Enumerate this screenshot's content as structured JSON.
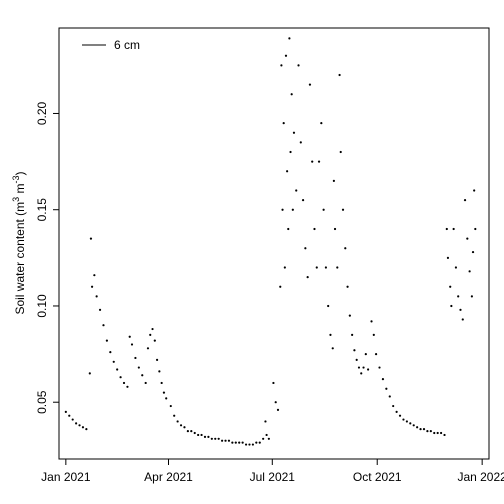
{
  "chart_data": {
    "type": "scatter",
    "title": "",
    "xlabel": "",
    "ylabel": "Soil water content (m³ m⁻³)",
    "ylabel_parts": {
      "main": "Soil water content (m",
      "sup1": "3",
      "mid": " m",
      "sup2": "-3",
      "end": ")"
    },
    "xlim": [
      "2020-12-26",
      "2022-01-07"
    ],
    "ylim": [
      0.0205,
      0.2444
    ],
    "x_ticks": [
      {
        "date": "2021-01-01",
        "label": "Jan 2021"
      },
      {
        "date": "2021-04-01",
        "label": "Apr 2021"
      },
      {
        "date": "2021-07-01",
        "label": "Jul 2021"
      },
      {
        "date": "2021-10-01",
        "label": "Oct 2021"
      },
      {
        "date": "2022-01-01",
        "label": "Jan 2022"
      }
    ],
    "y_ticks": [
      {
        "value": 0.05,
        "label": "0.05"
      },
      {
        "value": 0.1,
        "label": "0.10"
      },
      {
        "value": 0.15,
        "label": "0.15"
      },
      {
        "value": 0.2,
        "label": "0.20"
      }
    ],
    "grid": false,
    "legend": {
      "position": "top-left",
      "entries": [
        "6 cm"
      ]
    },
    "color": "#000000",
    "series": [
      {
        "name": "6 cm",
        "points": [
          [
            "2021-01-01",
            0.045
          ],
          [
            "2021-01-04",
            0.043
          ],
          [
            "2021-01-07",
            0.041
          ],
          [
            "2021-01-10",
            0.039
          ],
          [
            "2021-01-13",
            0.038
          ],
          [
            "2021-01-16",
            0.037
          ],
          [
            "2021-01-19",
            0.036
          ],
          [
            "2021-01-22",
            0.065
          ],
          [
            "2021-01-23",
            0.135
          ],
          [
            "2021-01-24",
            0.11
          ],
          [
            "2021-01-26",
            0.116
          ],
          [
            "2021-01-28",
            0.105
          ],
          [
            "2021-01-31",
            0.098
          ],
          [
            "2021-02-03",
            0.09
          ],
          [
            "2021-02-06",
            0.082
          ],
          [
            "2021-02-09",
            0.076
          ],
          [
            "2021-02-12",
            0.071
          ],
          [
            "2021-02-15",
            0.067
          ],
          [
            "2021-02-18",
            0.063
          ],
          [
            "2021-02-21",
            0.06
          ],
          [
            "2021-02-24",
            0.058
          ],
          [
            "2021-02-26",
            0.084
          ],
          [
            "2021-02-28",
            0.08
          ],
          [
            "2021-03-03",
            0.073
          ],
          [
            "2021-03-06",
            0.068
          ],
          [
            "2021-03-09",
            0.064
          ],
          [
            "2021-03-12",
            0.06
          ],
          [
            "2021-03-14",
            0.078
          ],
          [
            "2021-03-16",
            0.085
          ],
          [
            "2021-03-18",
            0.088
          ],
          [
            "2021-03-20",
            0.082
          ],
          [
            "2021-03-22",
            0.072
          ],
          [
            "2021-03-24",
            0.066
          ],
          [
            "2021-03-26",
            0.06
          ],
          [
            "2021-03-28",
            0.055
          ],
          [
            "2021-03-30",
            0.052
          ],
          [
            "2021-04-03",
            0.048
          ],
          [
            "2021-04-06",
            0.043
          ],
          [
            "2021-04-09",
            0.04
          ],
          [
            "2021-04-12",
            0.038
          ],
          [
            "2021-04-15",
            0.037
          ],
          [
            "2021-04-18",
            0.035
          ],
          [
            "2021-04-21",
            0.035
          ],
          [
            "2021-04-24",
            0.034
          ],
          [
            "2021-04-27",
            0.033
          ],
          [
            "2021-04-30",
            0.033
          ],
          [
            "2021-05-03",
            0.032
          ],
          [
            "2021-05-06",
            0.032
          ],
          [
            "2021-05-09",
            0.031
          ],
          [
            "2021-05-12",
            0.031
          ],
          [
            "2021-05-15",
            0.031
          ],
          [
            "2021-05-18",
            0.03
          ],
          [
            "2021-05-21",
            0.03
          ],
          [
            "2021-05-24",
            0.03
          ],
          [
            "2021-05-27",
            0.029
          ],
          [
            "2021-05-30",
            0.029
          ],
          [
            "2021-06-02",
            0.029
          ],
          [
            "2021-06-05",
            0.029
          ],
          [
            "2021-06-08",
            0.028
          ],
          [
            "2021-06-11",
            0.028
          ],
          [
            "2021-06-14",
            0.028
          ],
          [
            "2021-06-17",
            0.029
          ],
          [
            "2021-06-20",
            0.029
          ],
          [
            "2021-06-23",
            0.031
          ],
          [
            "2021-06-25",
            0.04
          ],
          [
            "2021-06-26",
            0.033
          ],
          [
            "2021-06-28",
            0.031
          ],
          [
            "2021-07-02",
            0.06
          ],
          [
            "2021-07-04",
            0.05
          ],
          [
            "2021-07-06",
            0.046
          ],
          [
            "2021-07-08",
            0.11
          ],
          [
            "2021-07-09",
            0.225
          ],
          [
            "2021-07-10",
            0.15
          ],
          [
            "2021-07-11",
            0.195
          ],
          [
            "2021-07-12",
            0.12
          ],
          [
            "2021-07-13",
            0.23
          ],
          [
            "2021-07-14",
            0.17
          ],
          [
            "2021-07-15",
            0.14
          ],
          [
            "2021-07-16",
            0.239
          ],
          [
            "2021-07-17",
            0.18
          ],
          [
            "2021-07-18",
            0.21
          ],
          [
            "2021-07-19",
            0.15
          ],
          [
            "2021-07-20",
            0.19
          ],
          [
            "2021-07-22",
            0.16
          ],
          [
            "2021-07-24",
            0.225
          ],
          [
            "2021-07-26",
            0.185
          ],
          [
            "2021-07-28",
            0.155
          ],
          [
            "2021-07-30",
            0.13
          ],
          [
            "2021-08-01",
            0.115
          ],
          [
            "2021-08-03",
            0.215
          ],
          [
            "2021-08-05",
            0.175
          ],
          [
            "2021-08-07",
            0.14
          ],
          [
            "2021-08-09",
            0.12
          ],
          [
            "2021-08-11",
            0.175
          ],
          [
            "2021-08-13",
            0.195
          ],
          [
            "2021-08-15",
            0.15
          ],
          [
            "2021-08-17",
            0.12
          ],
          [
            "2021-08-19",
            0.1
          ],
          [
            "2021-08-21",
            0.085
          ],
          [
            "2021-08-23",
            0.078
          ],
          [
            "2021-08-24",
            0.165
          ],
          [
            "2021-08-25",
            0.14
          ],
          [
            "2021-08-27",
            0.12
          ],
          [
            "2021-08-29",
            0.22
          ],
          [
            "2021-08-30",
            0.18
          ],
          [
            "2021-09-01",
            0.15
          ],
          [
            "2021-09-03",
            0.13
          ],
          [
            "2021-09-05",
            0.11
          ],
          [
            "2021-09-07",
            0.095
          ],
          [
            "2021-09-09",
            0.085
          ],
          [
            "2021-09-11",
            0.077
          ],
          [
            "2021-09-13",
            0.072
          ],
          [
            "2021-09-15",
            0.068
          ],
          [
            "2021-09-17",
            0.065
          ],
          [
            "2021-09-19",
            0.068
          ],
          [
            "2021-09-21",
            0.075
          ],
          [
            "2021-09-23",
            0.067
          ],
          [
            "2021-09-26",
            0.092
          ],
          [
            "2021-09-28",
            0.085
          ],
          [
            "2021-09-30",
            0.075
          ],
          [
            "2021-10-03",
            0.068
          ],
          [
            "2021-10-06",
            0.062
          ],
          [
            "2021-10-09",
            0.057
          ],
          [
            "2021-10-12",
            0.053
          ],
          [
            "2021-10-15",
            0.048
          ],
          [
            "2021-10-18",
            0.045
          ],
          [
            "2021-10-21",
            0.043
          ],
          [
            "2021-10-24",
            0.041
          ],
          [
            "2021-10-27",
            0.04
          ],
          [
            "2021-10-30",
            0.039
          ],
          [
            "2021-11-02",
            0.038
          ],
          [
            "2021-11-05",
            0.037
          ],
          [
            "2021-11-08",
            0.036
          ],
          [
            "2021-11-11",
            0.036
          ],
          [
            "2021-11-14",
            0.035
          ],
          [
            "2021-11-17",
            0.035
          ],
          [
            "2021-11-20",
            0.034
          ],
          [
            "2021-11-23",
            0.034
          ],
          [
            "2021-11-26",
            0.034
          ],
          [
            "2021-11-29",
            0.033
          ],
          [
            "2021-12-01",
            0.14
          ],
          [
            "2021-12-02",
            0.125
          ],
          [
            "2021-12-04",
            0.11
          ],
          [
            "2021-12-05",
            0.1
          ],
          [
            "2021-12-07",
            0.14
          ],
          [
            "2021-12-09",
            0.12
          ],
          [
            "2021-12-11",
            0.105
          ],
          [
            "2021-12-13",
            0.098
          ],
          [
            "2021-12-15",
            0.093
          ],
          [
            "2021-12-17",
            0.155
          ],
          [
            "2021-12-19",
            0.135
          ],
          [
            "2021-12-21",
            0.118
          ],
          [
            "2021-12-23",
            0.105
          ],
          [
            "2021-12-24",
            0.128
          ],
          [
            "2021-12-25",
            0.16
          ],
          [
            "2021-12-26",
            0.14
          ]
        ]
      }
    ]
  }
}
